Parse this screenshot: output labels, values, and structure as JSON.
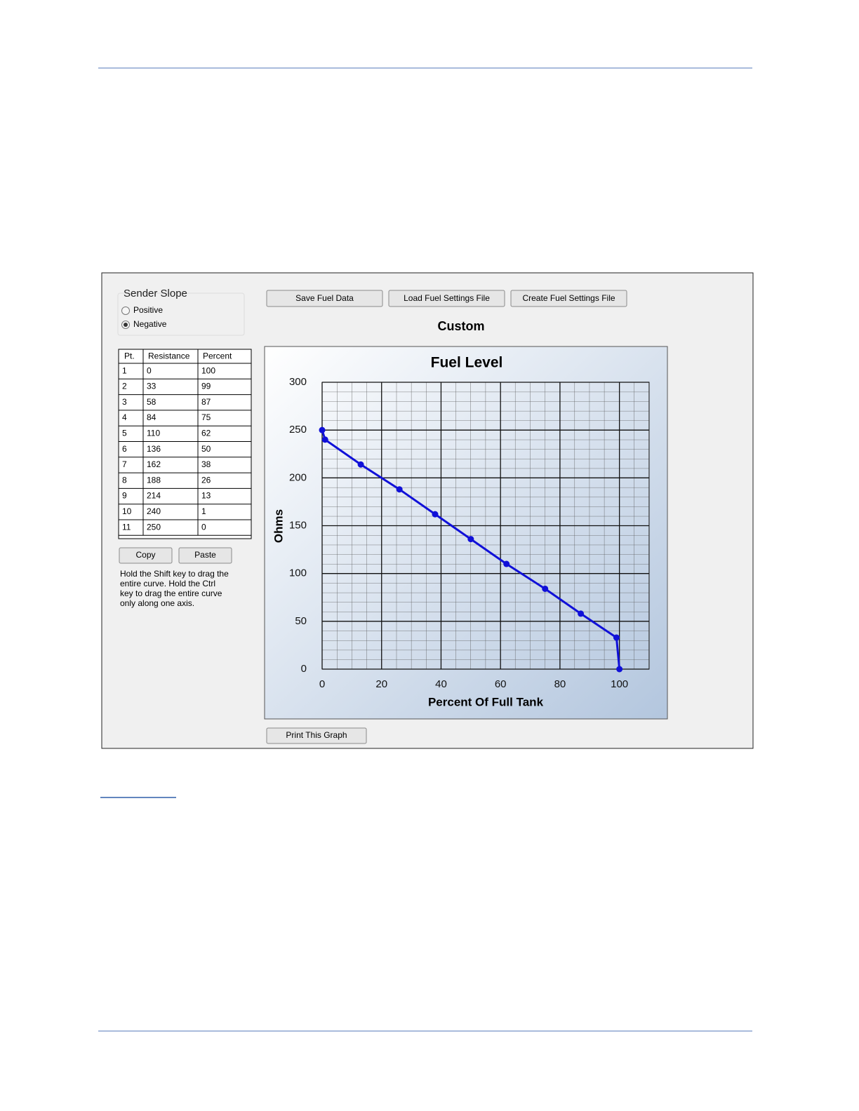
{
  "sender_slope": {
    "title": "Sender Slope",
    "options": [
      "Positive",
      "Negative"
    ],
    "selected": 1
  },
  "buttons": [
    "Save Fuel Data",
    "Load Fuel Settings File",
    "Create Fuel Settings File"
  ],
  "heading": "Custom",
  "table": {
    "columns": [
      "Pt.",
      "Resistance",
      "Percent"
    ],
    "rows": [
      [
        "1",
        "0",
        "100"
      ],
      [
        "2",
        "33",
        "99"
      ],
      [
        "3",
        "58",
        "87"
      ],
      [
        "4",
        "84",
        "75"
      ],
      [
        "5",
        "110",
        "62"
      ],
      [
        "6",
        "136",
        "50"
      ],
      [
        "7",
        "162",
        "38"
      ],
      [
        "8",
        "188",
        "26"
      ],
      [
        "9",
        "214",
        "13"
      ],
      [
        "10",
        "240",
        "1"
      ],
      [
        "11",
        "250",
        "0"
      ]
    ]
  },
  "table_buttons": [
    "Copy",
    "Paste"
  ],
  "note": [
    "Hold the Shift key to drag the",
    "entire curve.  Hold the Ctrl",
    "key to drag the entire curve",
    "only along one axis."
  ],
  "print_button": "Print This Graph",
  "chart_data": {
    "type": "line",
    "title": "Fuel Level",
    "x_label": "Percent Of Full Tank",
    "y_label": "Ohms",
    "x": [
      100,
      99,
      87,
      75,
      62,
      50,
      38,
      26,
      13,
      1,
      0
    ],
    "series": [
      {
        "name": "Resistance",
        "color": "#1010d8",
        "values": [
          0,
          33,
          58,
          84,
          110,
          136,
          162,
          188,
          214,
          240,
          250
        ]
      }
    ],
    "xlim": [
      0,
      110
    ],
    "ylim": [
      0,
      300
    ],
    "xticks": [
      0,
      20,
      40,
      60,
      80,
      100
    ],
    "yticks": [
      0,
      50,
      100,
      150,
      200,
      250,
      300
    ],
    "grid": true
  }
}
